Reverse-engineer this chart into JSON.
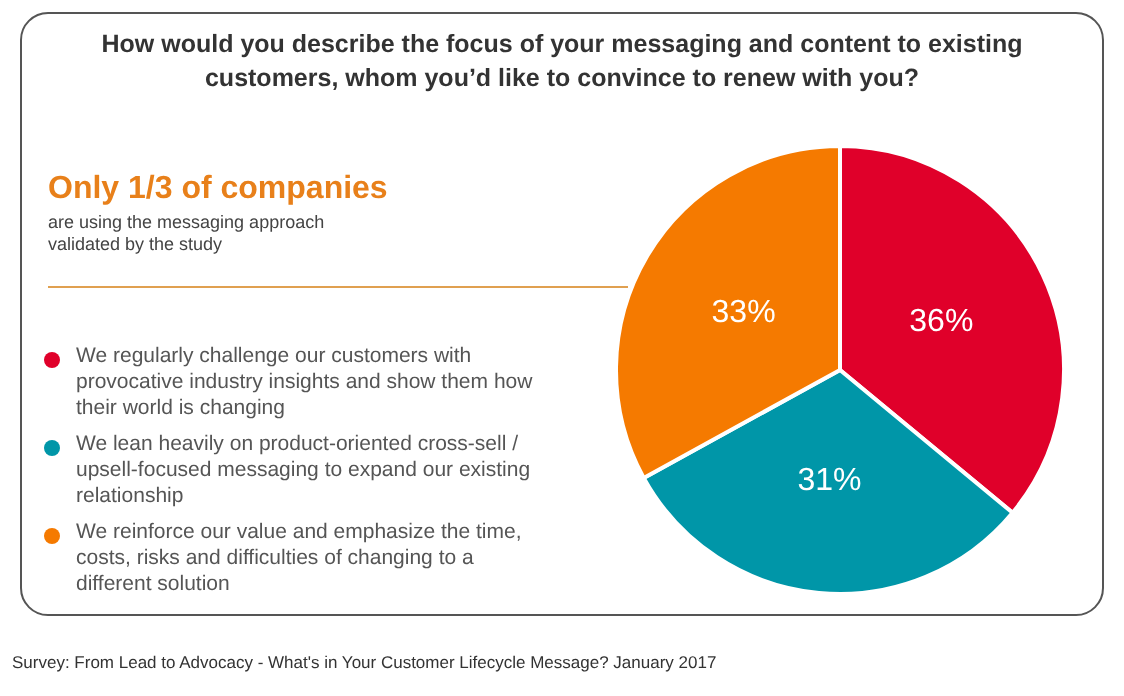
{
  "chart_data": {
    "type": "pie",
    "title": "How would you describe the focus of your messaging and content to existing customers, whom you’d like to convince to renew with you?",
    "categories": [
      "We regularly challenge our customers with provocative industry insights and show them how their world is changing",
      "We lean heavily on product-oriented cross-sell / upsell-focused messaging to expand our existing relationship",
      "We reinforce our value and emphasize the time, costs, risks and difficulties of changing to a different solution"
    ],
    "values": [
      36,
      31,
      33
    ],
    "colors": [
      "#e0002a",
      "#0096a8",
      "#f57a00"
    ],
    "value_labels": [
      "36%",
      "31%",
      "33%"
    ],
    "legend": "left",
    "annotations": [
      "Only 1/3 of companies",
      "are using the messaging approach validated by the study",
      "Survey: From Lead to Advocacy - What's in Your Customer Lifecycle Message? January 2017"
    ]
  }
}
